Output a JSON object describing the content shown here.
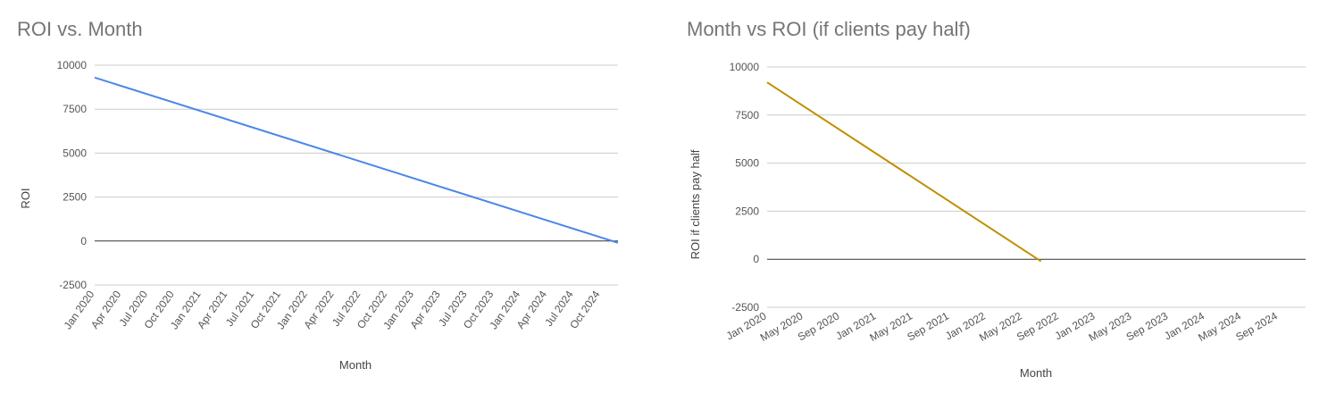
{
  "chart_data": [
    {
      "type": "line",
      "title": "ROI vs. Month",
      "xlabel": "Month",
      "ylabel": "ROI",
      "ylim": [
        -2500,
        10000
      ],
      "yticks": [
        -2500,
        0,
        2500,
        5000,
        7500,
        10000
      ],
      "ytick_labels": [
        "-2500",
        "0",
        "2500",
        "5000",
        "7500",
        "10000"
      ],
      "xticks": [
        "Jan 2020",
        "Apr 2020",
        "Jul 2020",
        "Oct 2020",
        "Jan 2021",
        "Apr 2021",
        "Jul 2021",
        "Oct 2021",
        "Jan 2022",
        "Apr 2022",
        "Jul 2022",
        "Oct 2022",
        "Jan 2023",
        "Apr 2023",
        "Jul 2023",
        "Oct 2023",
        "Jan 2024",
        "Apr 2024",
        "Jul 2024",
        "Oct 2024"
      ],
      "xlim": [
        "Jan 2020",
        "Dec 2024"
      ],
      "grid": true,
      "series": [
        {
          "color": "#4a86e8",
          "x": [
            "Jan 2020",
            "Dec 2024"
          ],
          "values": [
            9300,
            -100
          ]
        }
      ]
    },
    {
      "type": "line",
      "title": "Month vs ROI (if clients pay half)",
      "xlabel": "Month",
      "ylabel": "ROI if clients pay half",
      "ylim": [
        -2500,
        10000
      ],
      "yticks": [
        -2500,
        0,
        2500,
        5000,
        7500,
        10000
      ],
      "ytick_labels": [
        "-2500",
        "0",
        "2500",
        "5000",
        "7500",
        "10000"
      ],
      "xticks": [
        "Jan 2020",
        "May 2020",
        "Sep 2020",
        "Jan 2021",
        "May 2021",
        "Sep 2021",
        "Jan 2022",
        "May 2022",
        "Sep 2022",
        "Jan 2023",
        "May 2023",
        "Sep 2023",
        "Jan 2024",
        "May 2024",
        "Sep 2024"
      ],
      "xlim": [
        "Jan 2020",
        "Dec 2024"
      ],
      "grid": true,
      "series": [
        {
          "color": "#bf9000",
          "x": [
            "Jan 2020",
            "Jul 2022"
          ],
          "values": [
            9200,
            -100
          ]
        }
      ]
    }
  ]
}
